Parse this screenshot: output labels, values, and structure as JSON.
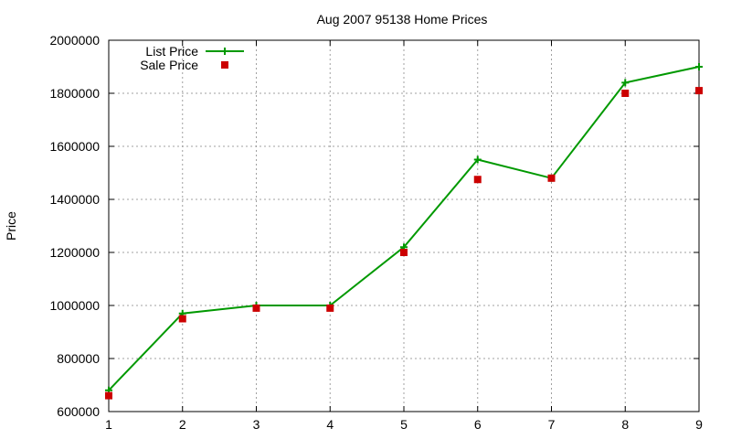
{
  "chart_data": {
    "type": "line",
    "title": "Aug 2007 95138 Home Prices",
    "xlabel": "",
    "ylabel": "Price",
    "x": [
      1,
      2,
      3,
      4,
      5,
      6,
      7,
      8,
      9
    ],
    "xlim": [
      1,
      9
    ],
    "ylim": [
      600000,
      2000000
    ],
    "yticks": [
      600000,
      800000,
      1000000,
      1200000,
      1400000,
      1600000,
      1800000,
      2000000
    ],
    "xticks": [
      1,
      2,
      3,
      4,
      5,
      6,
      7,
      8,
      9
    ],
    "grid": true,
    "legend_position": "top-left",
    "series": [
      {
        "name": "List Price",
        "style": "line-with-plus-markers",
        "color": "#009900",
        "values": [
          680000,
          970000,
          1000000,
          1000000,
          1220000,
          1550000,
          1480000,
          1840000,
          1900000
        ]
      },
      {
        "name": "Sale Price",
        "style": "square-markers",
        "color": "#cc0000",
        "values": [
          660000,
          950000,
          990000,
          990000,
          1200000,
          1475000,
          1480000,
          1800000,
          1810000
        ]
      }
    ]
  }
}
